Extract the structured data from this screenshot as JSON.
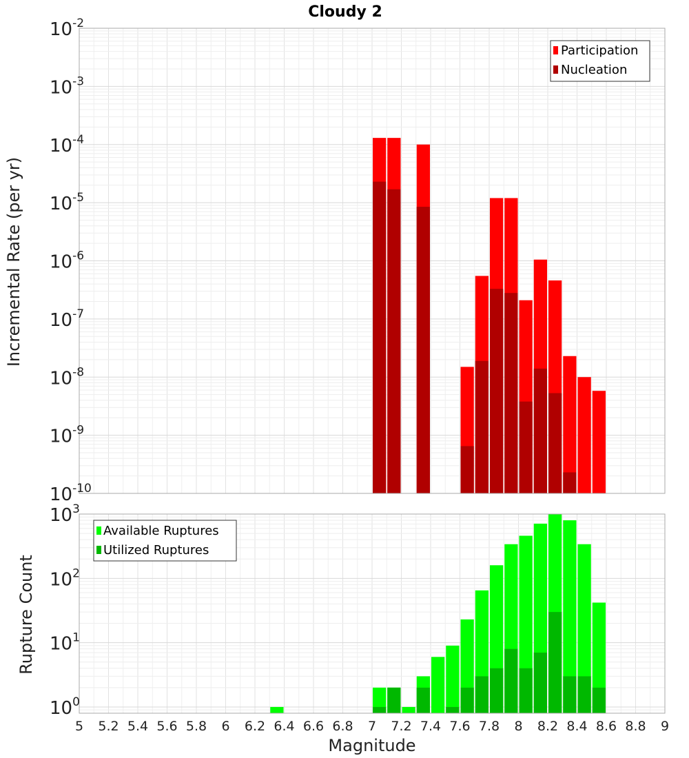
{
  "chart_data": [
    {
      "type": "bar",
      "title": "Cloudy 2",
      "xlabel": "",
      "ylabel": "Incremental Rate (per yr)",
      "xlim": [
        5,
        9
      ],
      "ylim": [
        1e-10,
        0.01
      ],
      "yscale": "log",
      "grid": true,
      "legend_position": "top-right",
      "ytick_exponents": [
        "-2",
        "-3",
        "-4",
        "-5",
        "-6",
        "-7",
        "-8",
        "-9",
        "-10"
      ],
      "series": [
        {
          "name": "Participation",
          "color": "#ff0000",
          "x": [
            7.05,
            7.15,
            7.35,
            7.65,
            7.75,
            7.85,
            7.95,
            8.05,
            8.15,
            8.25,
            8.35,
            8.45,
            8.55
          ],
          "values": [
            0.00013,
            0.00013,
            0.0001,
            1.5e-08,
            5.5e-07,
            1.2e-05,
            1.2e-05,
            2.1e-07,
            1.05e-06,
            4.6e-07,
            2.3e-08,
            1e-08,
            5.8e-09
          ]
        },
        {
          "name": "Nucleation",
          "color": "#b00000",
          "x": [
            7.05,
            7.15,
            7.35,
            7.65,
            7.75,
            7.85,
            7.95,
            8.05,
            8.15,
            8.25,
            8.35
          ],
          "values": [
            2.3e-05,
            1.7e-05,
            8.5e-06,
            6.5e-10,
            1.9e-08,
            3.3e-07,
            2.8e-07,
            3.8e-09,
            1.4e-08,
            5.3e-09,
            2.3e-10
          ]
        }
      ]
    },
    {
      "type": "bar",
      "title": "",
      "xlabel": "Magnitude",
      "ylabel": "Rupture Count",
      "xlim": [
        5,
        9
      ],
      "ylim": [
        0.8,
        1000
      ],
      "yscale": "log",
      "grid": true,
      "legend_position": "top-left",
      "xticks": [
        "5",
        "5.2",
        "5.4",
        "5.6",
        "5.8",
        "6",
        "6.2",
        "6.4",
        "6.6",
        "6.8",
        "7",
        "7.2",
        "7.4",
        "7.6",
        "7.8",
        "8",
        "8.2",
        "8.4",
        "8.6",
        "8.8",
        "9"
      ],
      "ytick_exponents": [
        "3",
        "2",
        "1",
        "0"
      ],
      "series": [
        {
          "name": "Available Ruptures",
          "color": "#00ff00",
          "x": [
            6.35,
            7.05,
            7.15,
            7.25,
            7.35,
            7.45,
            7.55,
            7.65,
            7.75,
            7.85,
            7.95,
            8.05,
            8.15,
            8.25,
            8.35,
            8.45,
            8.55
          ],
          "values": [
            1,
            2,
            2,
            1,
            3,
            6,
            9,
            23,
            65,
            160,
            340,
            460,
            710,
            1000,
            800,
            340,
            42
          ]
        },
        {
          "name": "Utilized Ruptures",
          "color": "#00b800",
          "x": [
            7.05,
            7.15,
            7.35,
            7.55,
            7.65,
            7.75,
            7.85,
            7.95,
            8.05,
            8.15,
            8.25,
            8.35,
            8.45,
            8.55
          ],
          "values": [
            1,
            2,
            2,
            1,
            2,
            3,
            4,
            8,
            4,
            7,
            30,
            3,
            3,
            2
          ]
        }
      ]
    }
  ]
}
